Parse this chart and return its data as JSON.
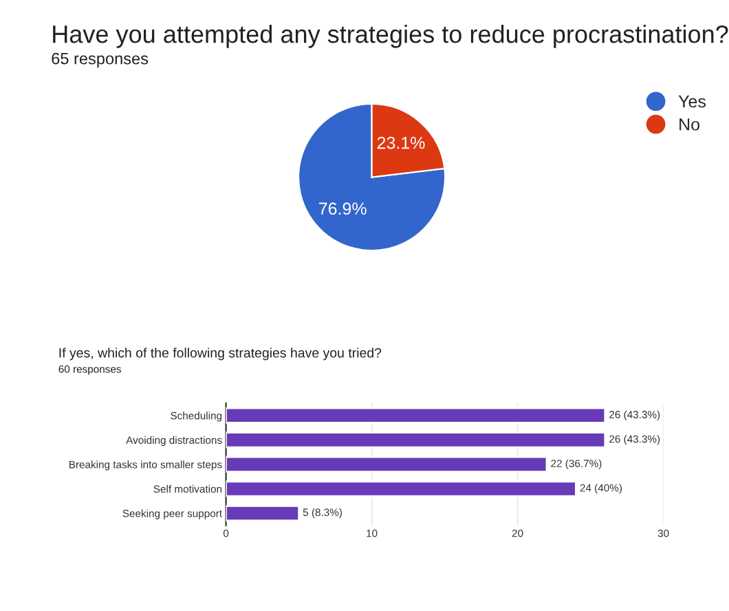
{
  "chart_data": [
    {
      "type": "pie",
      "title": "Have you attempted any strategies to reduce procrastination?",
      "subtitle": "65 responses",
      "categories": [
        "Yes",
        "No"
      ],
      "values": [
        76.9,
        23.1
      ],
      "colors": [
        "#3366cc",
        "#dc3912"
      ],
      "value_labels": [
        "76.9%",
        "23.1%"
      ],
      "legend": "top right"
    },
    {
      "type": "bar",
      "orientation": "horizontal",
      "title": "If yes, which of the following strategies have you tried?",
      "subtitle": "60 responses",
      "categories": [
        "Scheduling",
        "Avoiding distractions",
        "Breaking tasks into smaller steps",
        "Self motivation",
        "Seeking peer support"
      ],
      "values": [
        26,
        26,
        22,
        24,
        5
      ],
      "color": "#673ab7",
      "value_labels": [
        "26 (43.3%)",
        "26 (43.3%)",
        "22 (36.7%)",
        "24 (40%)",
        "5 (8.3%)"
      ],
      "xlim": [
        0,
        30
      ],
      "xticks": [
        0,
        10,
        20,
        30
      ],
      "grid": "x"
    }
  ]
}
